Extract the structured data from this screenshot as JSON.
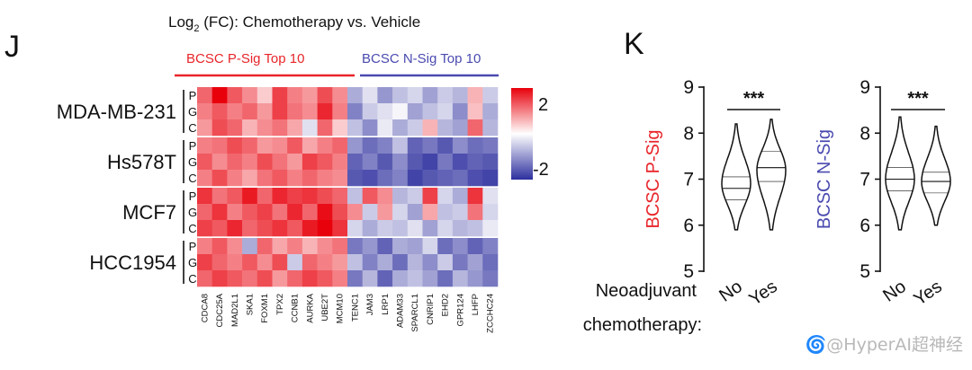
{
  "panels": {
    "j": "J",
    "k": "K"
  },
  "heatmap": {
    "title_prefix": "Log",
    "title_sub": "2",
    "title_rest": " (FC): Chemotherapy vs. Vehicle",
    "group_left": "BCSC P-Sig Top 10",
    "group_right": "BCSC N-Sig Top 10",
    "group_left_color": "#e8252a",
    "group_right_color": "#4a4ab0",
    "colorbar_max": "2",
    "colorbar_min": "-2"
  },
  "violins": {
    "x_title_line1": "Neoadjuvant",
    "x_title_line2": "chemotherapy:",
    "sig": "***",
    "p_color": "#e8252a",
    "n_color": "#4a4ab0"
  },
  "watermark": "🌀@HyperAI超神经",
  "chart_data": [
    {
      "type": "heatmap",
      "title": "Log2 (FC): Chemotherapy vs. Vehicle",
      "cell_lines": [
        "MDA-MB-231",
        "Hs578T",
        "MCF7",
        "HCC1954"
      ],
      "sub_rows": [
        "P",
        "G",
        "C"
      ],
      "columns": [
        "CDCA8",
        "CDC25A",
        "MAD2L1",
        "SKA1",
        "FOXM1",
        "TPX2",
        "CCNB1",
        "AURKA",
        "UBE2T",
        "MCM10",
        "TENC1",
        "JAM3",
        "LRP1",
        "ADAM33",
        "SPARCL1",
        "CNRIP1",
        "EHD2",
        "GPR124",
        "LHFP",
        "ZCCHC24"
      ],
      "color_scale": {
        "min": -2,
        "max": 2
      },
      "values": [
        [
          1.2,
          2.0,
          1.3,
          0.9,
          0.4,
          1.5,
          1.0,
          0.8,
          1.4,
          0.9,
          -0.8,
          -0.3,
          -1.0,
          -0.6,
          -0.4,
          -0.9,
          -0.5,
          -0.7,
          0.6,
          -0.5
        ],
        [
          1.0,
          1.3,
          1.0,
          1.2,
          0.8,
          1.5,
          1.1,
          0.9,
          1.7,
          1.0,
          -1.2,
          -0.5,
          -0.3,
          -0.1,
          -0.9,
          -0.6,
          -0.4,
          -1.1,
          0.5,
          -0.8
        ],
        [
          0.8,
          1.4,
          1.2,
          0.6,
          0.9,
          1.1,
          0.7,
          -0.3,
          1.2,
          0.4,
          -0.6,
          -1.1,
          -0.2,
          -0.8,
          -0.5,
          0.6,
          -0.7,
          -0.9,
          1.2,
          -0.7
        ],
        [
          1.0,
          1.1,
          1.4,
          1.2,
          0.8,
          0.9,
          1.3,
          0.7,
          1.0,
          1.2,
          -1.0,
          -1.4,
          -1.2,
          -0.6,
          -1.5,
          -1.3,
          -1.6,
          -1.1,
          -1.4,
          -1.3
        ],
        [
          1.3,
          0.9,
          1.2,
          1.0,
          1.4,
          1.1,
          0.8,
          1.5,
          1.3,
          1.0,
          -1.5,
          -1.2,
          -1.6,
          -1.1,
          -1.6,
          -1.8,
          -1.3,
          -1.7,
          -1.5,
          -1.6
        ],
        [
          1.0,
          1.4,
          1.0,
          0.7,
          1.1,
          1.3,
          1.0,
          1.2,
          1.0,
          0.9,
          -1.6,
          -1.7,
          -1.4,
          -1.2,
          -1.8,
          -1.6,
          -1.5,
          -1.4,
          -1.7,
          -1.8
        ],
        [
          1.6,
          1.1,
          1.3,
          1.8,
          1.2,
          1.7,
          1.5,
          1.6,
          1.4,
          1.2,
          -0.6,
          1.3,
          0.9,
          -0.7,
          -0.5,
          1.5,
          -0.4,
          -0.8,
          1.6,
          -0.3
        ],
        [
          1.2,
          1.6,
          1.0,
          1.3,
          1.5,
          1.1,
          1.7,
          1.2,
          1.9,
          1.4,
          0.9,
          -0.5,
          0.8,
          -0.4,
          -0.9,
          0.7,
          -0.6,
          -0.5,
          1.1,
          -0.4
        ],
        [
          1.5,
          1.3,
          1.7,
          1.2,
          1.4,
          1.6,
          1.3,
          1.8,
          2.0,
          1.6,
          -0.4,
          -0.8,
          -0.5,
          -0.6,
          -0.3,
          -0.9,
          -0.4,
          -0.7,
          -0.6,
          -0.2
        ],
        [
          1.0,
          1.3,
          0.9,
          -0.8,
          1.2,
          0.7,
          1.0,
          0.6,
          0.9,
          1.1,
          -1.3,
          -1.0,
          -1.5,
          -0.8,
          -0.9,
          -0.4,
          -1.4,
          -1.1,
          -1.5,
          -1.2
        ],
        [
          1.5,
          1.2,
          1.0,
          1.3,
          0.9,
          1.4,
          -0.5,
          1.2,
          1.0,
          0.8,
          -0.6,
          -1.2,
          -0.8,
          -1.4,
          -0.7,
          -1.1,
          -0.5,
          -1.3,
          -0.9,
          -1.4
        ],
        [
          1.2,
          1.5,
          1.3,
          1.1,
          1.4,
          0.8,
          1.2,
          1.5,
          1.3,
          1.0,
          -1.3,
          -0.7,
          -1.5,
          -0.8,
          -0.6,
          -0.9,
          -1.4,
          -0.7,
          -1.0,
          -1.3
        ]
      ]
    },
    {
      "type": "violin",
      "ylabel": "BCSC P-Sig",
      "ylim": [
        5,
        9
      ],
      "yticks": [
        5,
        6,
        7,
        8,
        9
      ],
      "categories": [
        "No",
        "Yes"
      ],
      "xlabel": "Neoadjuvant chemotherapy:",
      "annotation": "***",
      "groups": [
        {
          "name": "No",
          "min": 5.9,
          "max": 8.2,
          "q1": 6.55,
          "median": 6.8,
          "q3": 7.05,
          "mode": 6.9
        },
        {
          "name": "Yes",
          "min": 5.9,
          "max": 8.3,
          "q1": 6.95,
          "median": 7.25,
          "q3": 7.6,
          "mode": 7.2
        }
      ]
    },
    {
      "type": "violin",
      "ylabel": "BCSC N-Sig",
      "ylim": [
        5,
        9
      ],
      "yticks": [
        5,
        6,
        7,
        8,
        9
      ],
      "categories": [
        "No",
        "Yes"
      ],
      "xlabel": "Neoadjuvant chemotherapy:",
      "annotation": "***",
      "groups": [
        {
          "name": "No",
          "min": 5.9,
          "max": 8.35,
          "q1": 6.75,
          "median": 7.0,
          "q3": 7.25,
          "mode": 7.0
        },
        {
          "name": "Yes",
          "min": 6.0,
          "max": 8.15,
          "q1": 6.7,
          "median": 6.95,
          "q3": 7.15,
          "mode": 6.95
        }
      ]
    }
  ]
}
